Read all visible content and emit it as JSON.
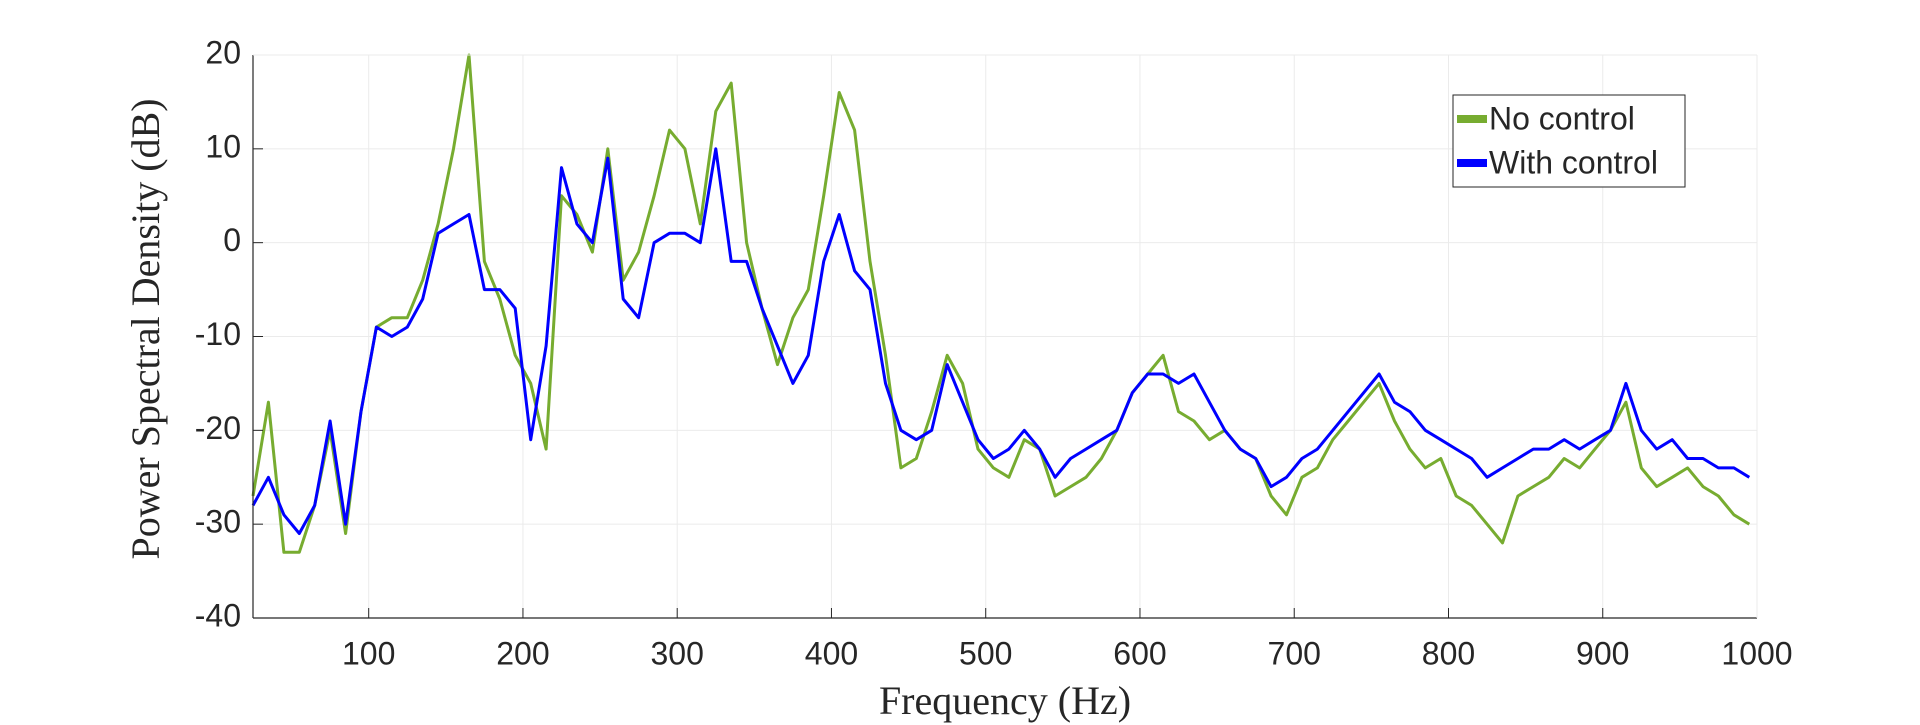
{
  "chart_data": {
    "type": "line",
    "x_label": "Frequency (Hz)",
    "y_label": "Power Spectral Density (dB)",
    "x": [
      25,
      35,
      45,
      55,
      65,
      75,
      85,
      95,
      105,
      115,
      125,
      135,
      145,
      155,
      165,
      175,
      185,
      195,
      205,
      215,
      225,
      235,
      245,
      255,
      265,
      275,
      285,
      295,
      305,
      315,
      325,
      335,
      345,
      355,
      365,
      375,
      385,
      395,
      405,
      415,
      425,
      435,
      445,
      455,
      465,
      475,
      485,
      495,
      505,
      515,
      525,
      535,
      545,
      555,
      565,
      575,
      585,
      595,
      605,
      615,
      625,
      635,
      645,
      655,
      665,
      675,
      685,
      695,
      705,
      715,
      725,
      735,
      745,
      755,
      765,
      775,
      785,
      795,
      805,
      815,
      825,
      835,
      845,
      855,
      865,
      875,
      885,
      895,
      905,
      915,
      925,
      935,
      945,
      955,
      965,
      975,
      985,
      995
    ],
    "series": [
      {
        "name": "No control",
        "color": "#77ac30",
        "values": [
          -27,
          -17,
          -33,
          -33,
          -28,
          -20,
          -31,
          -18,
          -9,
          -8,
          -8,
          -4,
          2,
          10,
          20,
          -2,
          -6,
          -12,
          -15,
          -22,
          5,
          3,
          -1,
          10,
          -4,
          -1,
          5,
          12,
          10,
          2,
          14,
          17,
          0,
          -7,
          -13,
          -8,
          -5,
          5,
          16,
          12,
          -2,
          -12,
          -24,
          -23,
          -18,
          -12,
          -15,
          -22,
          -24,
          -25,
          -21,
          -22,
          -27,
          -26,
          -25,
          -23,
          -20,
          -16,
          -14,
          -12,
          -18,
          -19,
          -21,
          -20,
          -22,
          -23,
          -27,
          -29,
          -25,
          -24,
          -21,
          -19,
          -17,
          -15,
          -19,
          -22,
          -24,
          -23,
          -27,
          -28,
          -30,
          -32,
          -27,
          -26,
          -25,
          -23,
          -24,
          -22,
          -20,
          -17,
          -24,
          -26,
          -25,
          -24,
          -26,
          -27,
          -29,
          -30
        ]
      },
      {
        "name": "With control",
        "color": "#0000ff",
        "values": [
          -28,
          -25,
          -29,
          -31,
          -28,
          -19,
          -30,
          -18,
          -9,
          -10,
          -9,
          -6,
          1,
          2,
          3,
          -5,
          -5,
          -7,
          -21,
          -11,
          8,
          2,
          0,
          9,
          -6,
          -8,
          0,
          1,
          1,
          0,
          10,
          -2,
          -2,
          -7,
          -11,
          -15,
          -12,
          -2,
          3,
          -3,
          -5,
          -15,
          -20,
          -21,
          -20,
          -13,
          -17,
          -21,
          -23,
          -22,
          -20,
          -22,
          -25,
          -23,
          -22,
          -21,
          -20,
          -16,
          -14,
          -14,
          -15,
          -14,
          -17,
          -20,
          -22,
          -23,
          -26,
          -25,
          -23,
          -22,
          -20,
          -18,
          -16,
          -14,
          -17,
          -18,
          -20,
          -21,
          -22,
          -23,
          -25,
          -24,
          -23,
          -22,
          -22,
          -21,
          -22,
          -21,
          -20,
          -15,
          -20,
          -22,
          -21,
          -23,
          -23,
          -24,
          -24,
          -25
        ]
      }
    ],
    "xlim": [
      25,
      1000
    ],
    "ylim": [
      -40,
      20
    ],
    "xticks": [
      100,
      200,
      300,
      400,
      500,
      600,
      700,
      800,
      900,
      1000
    ],
    "yticks": [
      -40,
      -30,
      -20,
      -10,
      0,
      10,
      20
    ],
    "grid": true,
    "legend": "northeast"
  }
}
